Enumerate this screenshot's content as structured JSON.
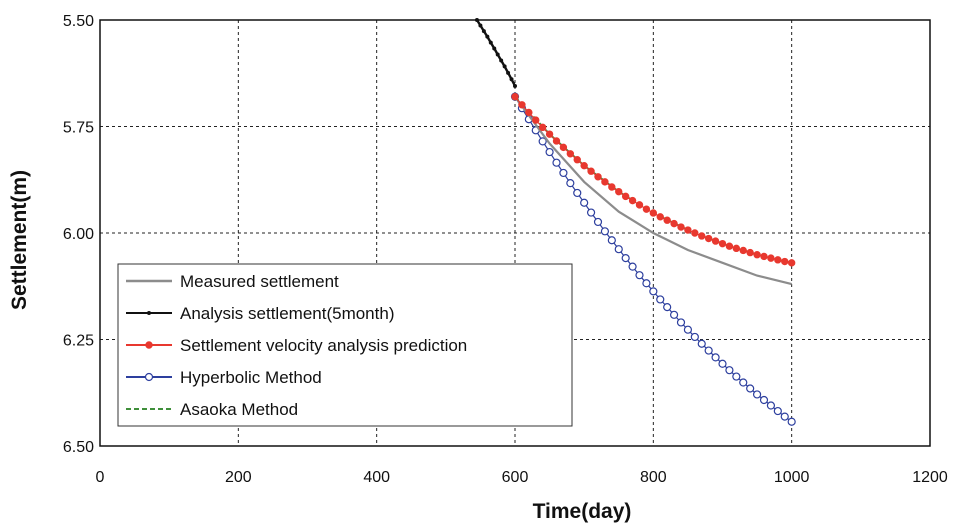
{
  "chart_data": {
    "type": "line",
    "title": "",
    "xlabel": "Time(day)",
    "ylabel": "Settlement(m)",
    "xlim": [
      0,
      1200
    ],
    "ylim": [
      5.5,
      6.5
    ],
    "y_inverted": true,
    "x_ticks": [
      0,
      200,
      400,
      600,
      800,
      1000,
      1200
    ],
    "x_tick_labels": [
      "0",
      "200",
      "400",
      "600",
      "800",
      "1000",
      "1200"
    ],
    "y_ticks": [
      5.5,
      5.75,
      6.0,
      6.25,
      6.5
    ],
    "y_tick_labels": [
      "5.50",
      "5.75",
      "6.00",
      "6.25",
      "6.50"
    ],
    "grid": true,
    "legend_position": "bottom-left",
    "series": [
      {
        "name": "Measured settlement",
        "color": "#8c8c8c",
        "style": "line",
        "x": [
          600,
          650,
          700,
          750,
          800,
          850,
          900,
          950,
          1000
        ],
        "y": [
          5.68,
          5.79,
          5.88,
          5.95,
          6.0,
          6.04,
          6.07,
          6.1,
          6.12
        ]
      },
      {
        "name": "Analysis settlement(5month)",
        "color": "#111111",
        "style": "line-dots",
        "x": [
          545,
          550,
          555,
          560,
          565,
          570,
          575,
          580,
          585,
          590,
          595,
          600
        ],
        "y": [
          5.5,
          5.513,
          5.526,
          5.539,
          5.553,
          5.567,
          5.581,
          5.595,
          5.609,
          5.624,
          5.639,
          5.655
        ]
      },
      {
        "name": "Settlement velocity analysis prediction",
        "color": "#e8382f",
        "style": "line-filled-markers",
        "x": [
          600,
          610,
          620,
          630,
          640,
          650,
          660,
          670,
          680,
          690,
          700,
          710,
          720,
          730,
          740,
          750,
          760,
          770,
          780,
          790,
          800,
          810,
          820,
          830,
          840,
          850,
          860,
          870,
          880,
          890,
          900,
          910,
          920,
          930,
          940,
          950,
          960,
          970,
          980,
          990,
          1000
        ],
        "y": [
          5.68,
          5.699,
          5.717,
          5.735,
          5.752,
          5.768,
          5.784,
          5.799,
          5.814,
          5.828,
          5.842,
          5.855,
          5.868,
          5.88,
          5.892,
          5.903,
          5.914,
          5.924,
          5.934,
          5.944,
          5.953,
          5.962,
          5.97,
          5.978,
          5.986,
          5.993,
          6.0,
          6.007,
          6.013,
          6.019,
          6.025,
          6.031,
          6.036,
          6.041,
          6.046,
          6.051,
          6.055,
          6.059,
          6.063,
          6.067,
          6.07
        ]
      },
      {
        "name": "Hyperbolic Method",
        "color": "#2d3f9e",
        "style": "line-open-markers",
        "x": [
          600,
          610,
          620,
          630,
          640,
          650,
          660,
          670,
          680,
          690,
          700,
          710,
          720,
          730,
          740,
          750,
          760,
          770,
          780,
          790,
          800,
          810,
          820,
          830,
          840,
          850,
          860,
          870,
          880,
          890,
          900,
          910,
          920,
          930,
          940,
          950,
          960,
          970,
          980,
          990,
          1000
        ],
        "y": [
          5.68,
          5.707,
          5.733,
          5.759,
          5.785,
          5.81,
          5.835,
          5.859,
          5.883,
          5.906,
          5.929,
          5.952,
          5.974,
          5.996,
          6.017,
          6.038,
          6.059,
          6.079,
          6.099,
          6.118,
          6.137,
          6.156,
          6.174,
          6.192,
          6.21,
          6.227,
          6.244,
          6.26,
          6.276,
          6.292,
          6.307,
          6.322,
          6.337,
          6.351,
          6.365,
          6.379,
          6.392,
          6.405,
          6.418,
          6.431,
          6.443
        ]
      },
      {
        "name": "Asaoka Method",
        "color": "#3f8f3a",
        "style": "dashed",
        "x": [
          600,
          650,
          700,
          750,
          800,
          850,
          900,
          950,
          1000
        ],
        "y": [
          5.68,
          5.768,
          5.842,
          5.903,
          5.953,
          5.993,
          6.025,
          6.051,
          6.07
        ]
      }
    ]
  }
}
